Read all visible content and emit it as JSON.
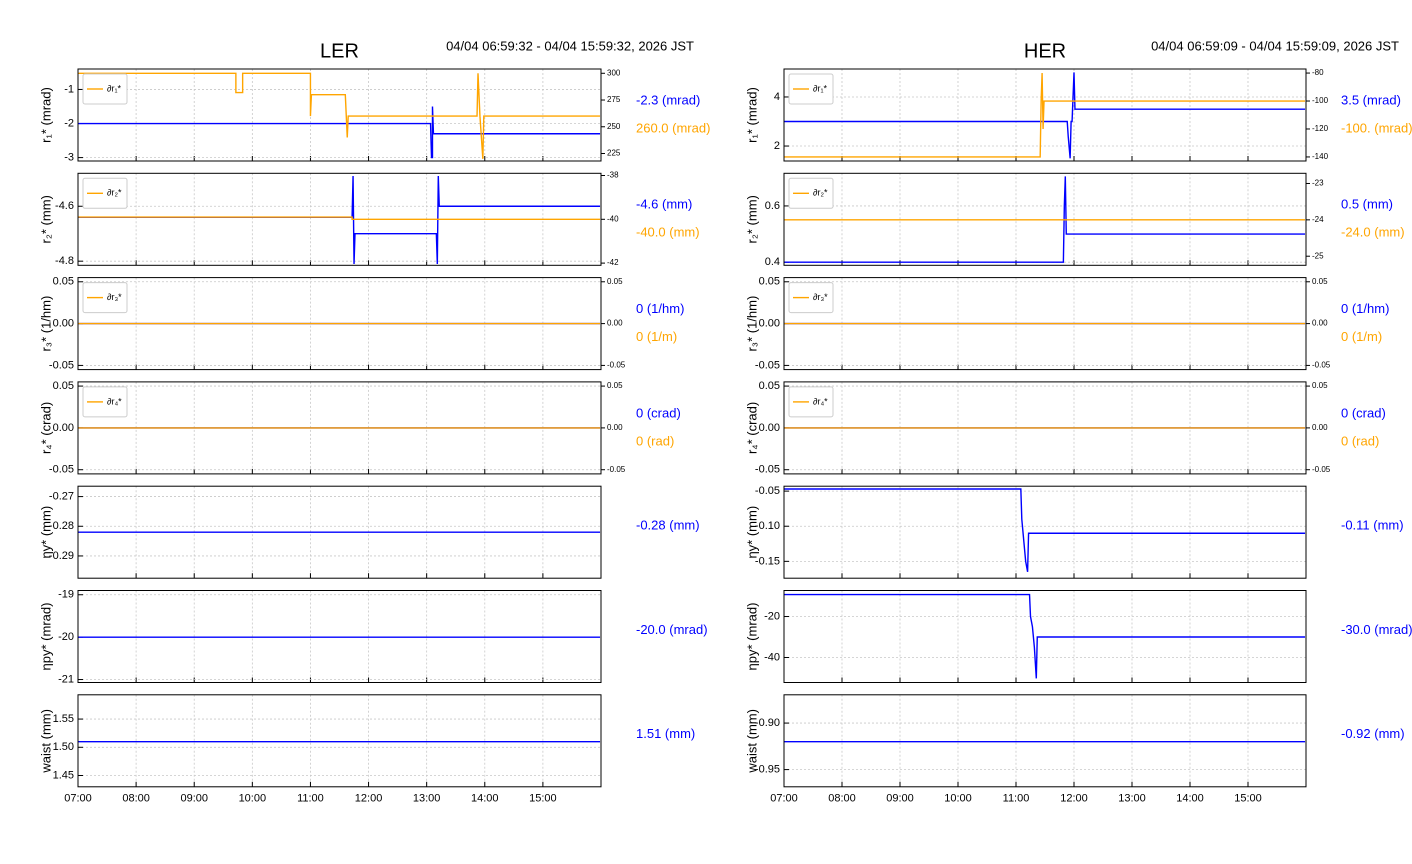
{
  "chart_data": [
    {
      "type": "line",
      "title": "LER",
      "subtitle": "04/04 06:59:32 - 04/04 15:59:32, 2026 JST",
      "ylabel": "r₁* (mrad)",
      "ylim": [
        -3.1,
        -0.4
      ],
      "yticks": [
        -1,
        -2,
        -3
      ],
      "y2lim": [
        218,
        304
      ],
      "y2ticks": [
        300,
        275,
        250,
        225
      ],
      "grid": true,
      "legend": "upper left",
      "series": [
        {
          "color": "#0000ff",
          "x": [
            "07:00",
            "13:04",
            "13:05",
            "13:06",
            "13:06",
            "13:07",
            "15:59"
          ],
          "values": [
            -2,
            -2,
            -3,
            -3,
            -1.5,
            -2.3,
            -2.3
          ],
          "readout": "-2.3 (mrad)"
        },
        {
          "name": "∂r₁*",
          "color": "#ffa500",
          "axis": "y2",
          "x": [
            "07:00",
            "09:43",
            "09:43",
            "09:50",
            "09:50",
            "11:00",
            "11:00",
            "11:01",
            "11:36",
            "11:38",
            "11:39",
            "13:52",
            "13:53",
            "13:55",
            "13:58",
            "13:59",
            "15:59"
          ],
          "values": [
            300,
            300,
            282,
            282,
            300,
            300,
            260,
            280,
            280,
            240,
            260,
            260,
            300,
            260,
            220,
            260,
            260
          ],
          "readout": "260.0 (mrad)"
        }
      ]
    },
    {
      "type": "line",
      "ylabel": "r₂* (mm)",
      "ylim": [
        -4.815,
        -4.48
      ],
      "yticks": [
        -4.6,
        -4.8
      ],
      "y2lim": [
        -42.1,
        -37.9
      ],
      "y2ticks": [
        -38,
        -40,
        -42
      ],
      "grid": true,
      "legend": "upper left",
      "series": [
        {
          "color": "#0000ff",
          "x": [
            "07:00",
            "11:43",
            "11:44",
            "11:45",
            "11:46",
            "13:10",
            "13:11",
            "13:12",
            "13:13",
            "15:59"
          ],
          "values": [
            -4.64,
            -4.64,
            -4.49,
            -4.81,
            -4.7,
            -4.7,
            -4.81,
            -4.49,
            -4.6,
            -4.6
          ],
          "readout": "-4.6 (mm)"
        },
        {
          "name": "∂r₂*",
          "color": "#ffa500",
          "axis": "y2",
          "x": [
            "07:00",
            "11:43",
            "11:43",
            "15:59"
          ],
          "values": [
            -39.9,
            -39.9,
            -40,
            -40
          ],
          "readout": "-40.0 (mm)"
        }
      ]
    },
    {
      "type": "line",
      "ylabel": "r₃* (1/hm)",
      "ylim": [
        -0.055,
        0.055
      ],
      "yticks": [
        0.05,
        {
          "value": 0,
          "label": "0.00"
        },
        -0.05
      ],
      "y2lim": [
        -0.055,
        0.055
      ],
      "y2ticks": [
        0.05,
        {
          "value": 0,
          "label": "0.00"
        },
        -0.05
      ],
      "grid": true,
      "legend": "upper left",
      "series": [
        {
          "color": "#0000ff",
          "x": [
            "07:00",
            "15:59"
          ],
          "values": [
            0,
            0
          ],
          "readout": "0 (1/hm)"
        },
        {
          "name": "∂r₃*",
          "color": "#ffa500",
          "axis": "y2",
          "x": [
            "07:00",
            "15:59"
          ],
          "values": [
            0,
            0
          ],
          "readout": "0 (1/m)"
        }
      ]
    },
    {
      "type": "line",
      "ylabel": "r₄* (crad)",
      "ylim": [
        -0.055,
        0.055
      ],
      "yticks": [
        0.05,
        {
          "value": 0,
          "label": "0.00"
        },
        -0.05
      ],
      "y2lim": [
        -0.055,
        0.055
      ],
      "y2ticks": [
        0.05,
        {
          "value": 0,
          "label": "0.00"
        },
        -0.05
      ],
      "grid": true,
      "legend": "upper left",
      "series": [
        {
          "color": "#0000ff",
          "x": [
            "07:00",
            "15:59"
          ],
          "values": [
            0,
            0
          ],
          "readout": "0 (crad)"
        },
        {
          "name": "∂r₄*",
          "color": "#ffa500",
          "axis": "y2",
          "x": [
            "07:00",
            "15:59"
          ],
          "values": [
            0,
            0
          ],
          "readout": "0 (rad)"
        }
      ]
    },
    {
      "type": "line",
      "ylabel": "ηy* (mm)",
      "ylim": [
        -0.2975,
        -0.2665
      ],
      "yticks": [
        -0.27,
        -0.28,
        -0.29
      ],
      "grid": true,
      "series": [
        {
          "color": "#0000ff",
          "x": [
            "07:00",
            "15:59"
          ],
          "values": [
            -0.282,
            -0.282
          ],
          "readout": "-0.28 (mm)"
        }
      ]
    },
    {
      "type": "line",
      "ylabel": "ηpy* (mrad)",
      "ylim": [
        -21.07,
        -18.9
      ],
      "yticks": [
        -19,
        -20,
        -21
      ],
      "grid": true,
      "series": [
        {
          "color": "#0000ff",
          "x": [
            "07:00",
            "15:59"
          ],
          "values": [
            -20,
            -20
          ],
          "readout": "-20.0 (mrad)"
        }
      ]
    },
    {
      "type": "line",
      "ylabel": "waist (mm)",
      "ylim": [
        1.43,
        1.593
      ],
      "yticks": [
        1.55,
        {
          "value": 1.5,
          "label": "1.50"
        },
        1.45
      ],
      "grid": true,
      "xlim": [
        "07:00",
        "16:00"
      ],
      "xticks": [
        "07:00",
        "08:00",
        "09:00",
        "10:00",
        "11:00",
        "12:00",
        "13:00",
        "14:00",
        "15:00"
      ],
      "series": [
        {
          "color": "#0000ff",
          "x": [
            "07:00",
            "15:59"
          ],
          "values": [
            1.51,
            1.51
          ],
          "readout": "1.51 (mm)"
        }
      ]
    },
    {
      "type": "line",
      "title": "HER",
      "subtitle": "04/04 06:59:09 - 04/04 15:59:09, 2026 JST",
      "ylabel": "r₁* (mrad)",
      "ylim": [
        1.39,
        5.14
      ],
      "yticks": [
        4,
        2
      ],
      "y2lim": [
        -142.9,
        -77.1
      ],
      "y2ticks": [
        -80,
        -100,
        -120,
        -140
      ],
      "grid": true,
      "legend": "upper left",
      "series": [
        {
          "color": "#0000ff",
          "x": [
            "07:00",
            "11:53",
            "11:54",
            "11:56",
            "11:57",
            "11:58",
            "12:00",
            "12:01",
            "15:59"
          ],
          "values": [
            3,
            3,
            2.4,
            1.5,
            3,
            3,
            5,
            3.5,
            3.5
          ],
          "readout": "3.5 (mrad)"
        },
        {
          "name": "∂r₁*",
          "color": "#ffa500",
          "axis": "y2",
          "x": [
            "07:00",
            "11:25",
            "11:26",
            "11:27",
            "11:28",
            "11:29",
            "15:59"
          ],
          "values": [
            -140,
            -140,
            -100,
            -80,
            -120,
            -100,
            -100
          ],
          "readout": "-100. (mrad)"
        }
      ]
    },
    {
      "type": "line",
      "ylabel": "r₂* (mm)",
      "ylim": [
        0.389,
        0.716
      ],
      "yticks": [
        0.6,
        0.4
      ],
      "y2lim": [
        -25.25,
        -22.72
      ],
      "y2ticks": [
        -23,
        -24,
        -25
      ],
      "grid": true,
      "legend": "upper left",
      "series": [
        {
          "color": "#0000ff",
          "x": [
            "07:00",
            "11:49",
            "11:50",
            "11:51",
            "11:52",
            "15:59"
          ],
          "values": [
            0.4,
            0.4,
            0.6,
            0.705,
            0.5,
            0.5
          ],
          "readout": "0.5 (mm)"
        },
        {
          "name": "∂r₂*",
          "color": "#ffa500",
          "axis": "y2",
          "x": [
            "07:00",
            "15:59"
          ],
          "values": [
            -24,
            -24
          ],
          "readout": "-24.0 (mm)"
        }
      ]
    },
    {
      "type": "line",
      "ylabel": "r₃* (1/hm)",
      "ylim": [
        -0.055,
        0.055
      ],
      "yticks": [
        0.05,
        {
          "value": 0,
          "label": "0.00"
        },
        -0.05
      ],
      "y2lim": [
        -0.055,
        0.055
      ],
      "y2ticks": [
        0.05,
        {
          "value": 0,
          "label": "0.00"
        },
        -0.05
      ],
      "grid": true,
      "legend": "upper left",
      "series": [
        {
          "color": "#0000ff",
          "x": [
            "07:00",
            "15:59"
          ],
          "values": [
            0,
            0
          ],
          "readout": "0 (1/hm)"
        },
        {
          "name": "∂r₃*",
          "color": "#ffa500",
          "axis": "y2",
          "x": [
            "07:00",
            "15:59"
          ],
          "values": [
            0,
            0
          ],
          "readout": "0 (1/m)"
        }
      ]
    },
    {
      "type": "line",
      "ylabel": "r₄* (crad)",
      "ylim": [
        -0.055,
        0.055
      ],
      "yticks": [
        0.05,
        {
          "value": 0,
          "label": "0.00"
        },
        -0.05
      ],
      "y2lim": [
        -0.055,
        0.055
      ],
      "y2ticks": [
        0.05,
        {
          "value": 0,
          "label": "0.00"
        },
        -0.05
      ],
      "grid": true,
      "legend": "upper left",
      "series": [
        {
          "color": "#0000ff",
          "x": [
            "07:00",
            "15:59"
          ],
          "values": [
            0,
            0
          ],
          "readout": "0 (crad)"
        },
        {
          "name": "∂r₄*",
          "color": "#ffa500",
          "axis": "y2",
          "x": [
            "07:00",
            "15:59"
          ],
          "values": [
            0,
            0
          ],
          "readout": "0 (rad)"
        }
      ]
    },
    {
      "type": "line",
      "ylabel": "ηy* (mm)",
      "ylim": [
        -0.174,
        -0.043
      ],
      "yticks": [
        -0.05,
        {
          "value": -0.1,
          "label": "-0.10"
        },
        -0.15
      ],
      "grid": true,
      "series": [
        {
          "color": "#0000ff",
          "x": [
            "07:00",
            "11:05",
            "11:06",
            "11:08",
            "11:10",
            "11:12",
            "11:13",
            "15:59"
          ],
          "values": [
            -0.047,
            -0.047,
            -0.09,
            -0.12,
            -0.15,
            -0.165,
            -0.11,
            -0.11
          ],
          "readout": "-0.11 (mm)"
        }
      ]
    },
    {
      "type": "line",
      "ylabel": "ηpy* (mrad)",
      "ylim": [
        -52.2,
        -7.3
      ],
      "yticks": [
        -20,
        -40
      ],
      "grid": true,
      "series": [
        {
          "color": "#0000ff",
          "x": [
            "07:00",
            "11:14",
            "11:15",
            "11:17",
            "11:19",
            "11:21",
            "11:22",
            "15:59"
          ],
          "values": [
            -9.3,
            -9.3,
            -20,
            -25,
            -35,
            -50.2,
            -30,
            -30
          ],
          "readout": "-30.0 (mrad)"
        }
      ]
    },
    {
      "type": "line",
      "ylabel": "waist (mm)",
      "ylim": [
        -0.9685,
        -0.8696
      ],
      "yticks": [
        {
          "value": -0.9,
          "label": "-0.90"
        },
        -0.95
      ],
      "grid": true,
      "xlim": [
        "07:00",
        "16:00"
      ],
      "xticks": [
        "07:00",
        "08:00",
        "09:00",
        "10:00",
        "11:00",
        "12:00",
        "13:00",
        "14:00",
        "15:00"
      ],
      "series": [
        {
          "color": "#0000ff",
          "x": [
            "07:00",
            "15:59"
          ],
          "values": [
            -0.92,
            -0.92
          ],
          "readout": "-0.92 (mm)"
        }
      ]
    }
  ]
}
